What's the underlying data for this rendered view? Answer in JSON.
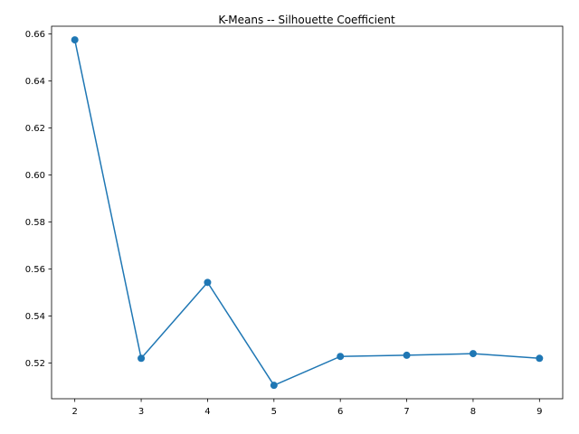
{
  "chart_data": {
    "type": "line",
    "title": "K-Means -- Silhouette Coefficient",
    "xlabel": "",
    "ylabel": "",
    "x": [
      2,
      3,
      4,
      5,
      6,
      7,
      8,
      9
    ],
    "series": [
      {
        "values": [
          0.6575,
          0.522,
          0.5543,
          0.5105,
          0.5228,
          0.5233,
          0.524,
          0.522
        ],
        "color": "#1f77b4",
        "marker": "circle"
      }
    ],
    "xlim": [
      1.65,
      9.35
    ],
    "ylim": [
      0.5048,
      0.6633
    ],
    "x_ticks": [
      "2",
      "3",
      "4",
      "5",
      "6",
      "7",
      "8",
      "9"
    ],
    "y_ticks": [
      "0.52",
      "0.54",
      "0.56",
      "0.58",
      "0.60",
      "0.62",
      "0.64",
      "0.66"
    ],
    "grid": false,
    "legend": false
  }
}
